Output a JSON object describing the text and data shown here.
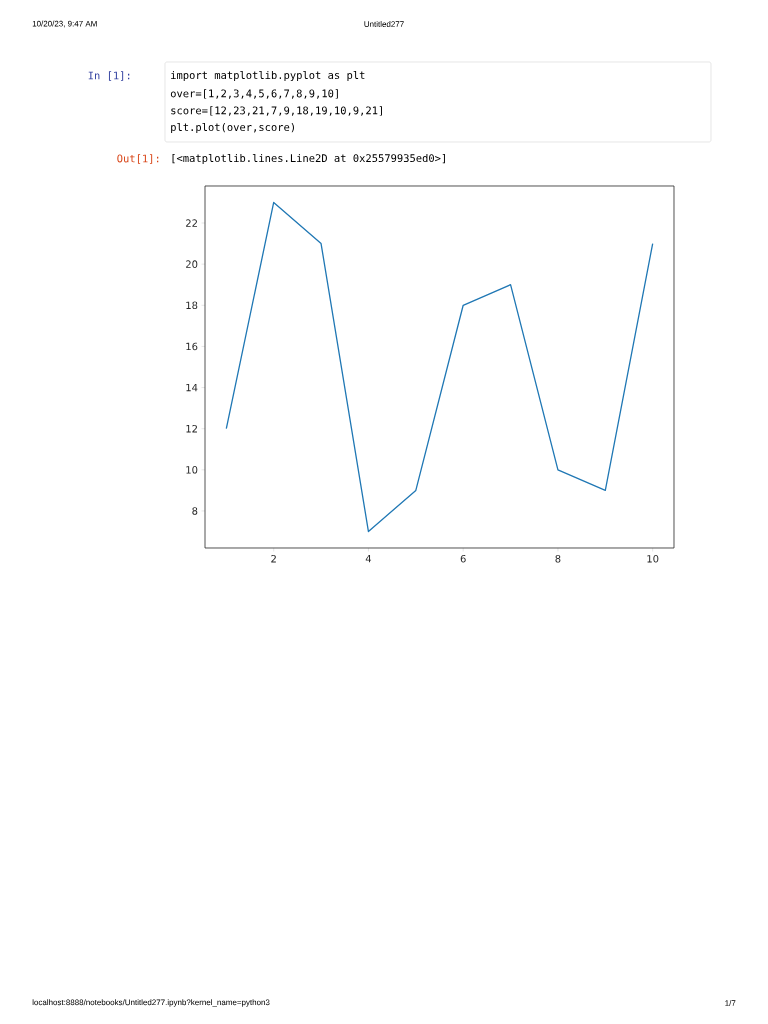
{
  "chart_data": {
    "type": "line",
    "x": [
      1,
      2,
      3,
      4,
      5,
      6,
      7,
      8,
      9,
      10
    ],
    "series": [
      {
        "color": "#1f77b4",
        "values": [
          12,
          23,
          21,
          7,
          9,
          18,
          19,
          10,
          9,
          21
        ]
      }
    ],
    "xlim": [
      0.55,
      10.45
    ],
    "ylim": [
      6.2,
      23.8
    ],
    "xticks": [
      2,
      4,
      6,
      8,
      10
    ],
    "yticks": [
      8,
      10,
      12,
      14,
      16,
      18,
      20,
      22
    ],
    "marker": "none",
    "line_style": "solid",
    "annotations": [
      "10/20/23, 9:47 AM",
      "Untitled277",
      "In [1]:",
      "import matplotlib.pyplot as plt",
      "over=[1,2,3,4,5,6,7,8,9,10]",
      "score=[12,23,21,7,9,18,19,10,9,21]",
      "plt.plot(over,score)",
      "Out[1]:",
      "[<matplotlib.lines.Line2D at 0x25579935ed0>]",
      "localhost:8888/notebooks/Untitled277.ipynb?kernel_name=python3",
      "1/7"
    ]
  }
}
